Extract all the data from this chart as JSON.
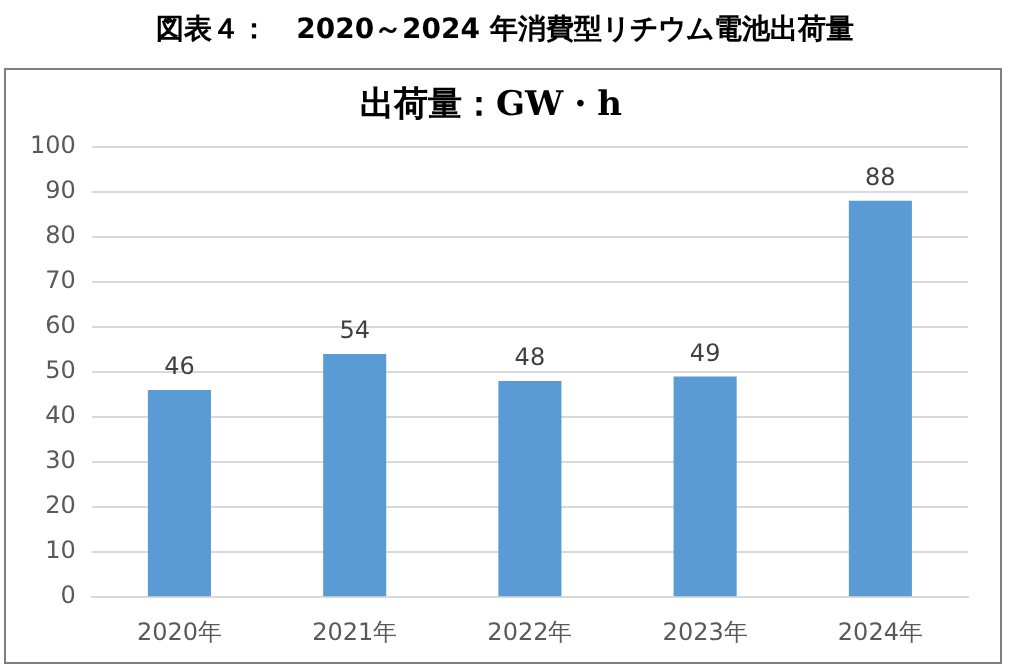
{
  "chart_data": {
    "type": "bar",
    "title": "図表４：　2020～2024 年消費型リチウム電池出荷量",
    "subtitle": "出荷量：GW・h",
    "categories": [
      "2020年",
      "2021年",
      "2022年",
      "2023年",
      "2024年"
    ],
    "values": [
      46,
      54,
      48,
      49,
      88
    ],
    "color": "#5b9bd5",
    "ylim": [
      0,
      100
    ],
    "yticks": [
      0,
      10,
      20,
      30,
      40,
      50,
      60,
      70,
      80,
      90,
      100
    ],
    "grid": "y",
    "data_labels": true
  }
}
